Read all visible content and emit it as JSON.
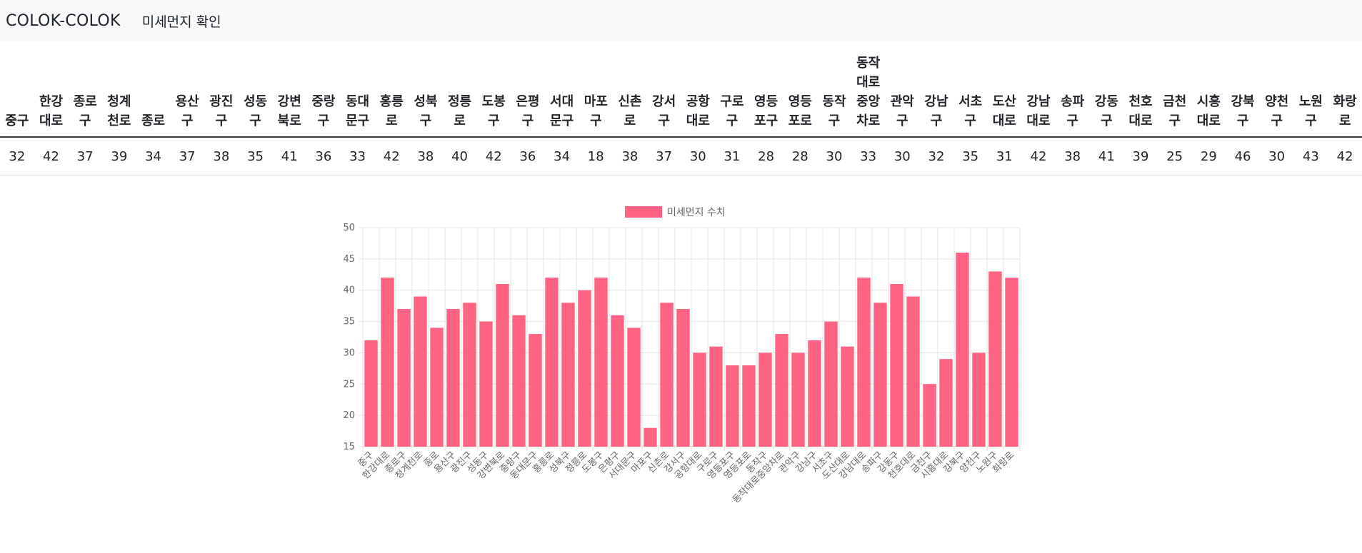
{
  "navbar": {
    "brand": "COLOK-COLOK",
    "link": "미세먼지 확인"
  },
  "table": {
    "headers": [
      "중구",
      "한강대로",
      "종로구",
      "청계천로",
      "종로",
      "용산구",
      "광진구",
      "성동구",
      "강변북로",
      "중랑구",
      "동대문구",
      "홍릉로",
      "성북구",
      "정릉로",
      "도봉구",
      "은평구",
      "서대문구",
      "마포구",
      "신촌로",
      "강서구",
      "공항대로",
      "구로구",
      "영등포구",
      "영등포로",
      "동작구",
      "동작대로중앙차로",
      "관악구",
      "강남구",
      "서초구",
      "도산대로",
      "강남대로",
      "송파구",
      "강동구",
      "천호대로",
      "금천구",
      "시흥대로",
      "강북구",
      "양천구",
      "노원구",
      "화랑로"
    ],
    "values": [
      "32",
      "42",
      "37",
      "39",
      "34",
      "37",
      "38",
      "35",
      "41",
      "36",
      "33",
      "42",
      "38",
      "40",
      "42",
      "36",
      "34",
      "18",
      "38",
      "37",
      "30",
      "31",
      "28",
      "28",
      "30",
      "33",
      "30",
      "32",
      "35",
      "31",
      "42",
      "38",
      "41",
      "39",
      "25",
      "29",
      "46",
      "30",
      "43",
      "42"
    ]
  },
  "chart_data": {
    "type": "bar",
    "categories": [
      "중구",
      "한강대로",
      "종로구",
      "청계천로",
      "종로",
      "용산구",
      "광진구",
      "성동구",
      "강변북로",
      "중랑구",
      "동대문구",
      "홍릉로",
      "성북구",
      "정릉로",
      "도봉구",
      "은평구",
      "서대문구",
      "마포구",
      "신촌로",
      "강서구",
      "공항대로",
      "구로구",
      "영등포구",
      "영등포로",
      "동작구",
      "동작대로중앙차로",
      "관악구",
      "강남구",
      "서초구",
      "도산대로",
      "강남대로",
      "송파구",
      "강동구",
      "천호대로",
      "금천구",
      "시흥대로",
      "강북구",
      "양천구",
      "노원구",
      "화랑로"
    ],
    "series": [
      {
        "name": "미세먼지 수치",
        "values": [
          32,
          42,
          37,
          39,
          34,
          37,
          38,
          35,
          41,
          36,
          33,
          42,
          38,
          40,
          42,
          36,
          34,
          18,
          38,
          37,
          30,
          31,
          28,
          28,
          30,
          33,
          30,
          32,
          35,
          31,
          42,
          38,
          41,
          39,
          25,
          29,
          46,
          30,
          43,
          42
        ]
      }
    ],
    "ylim": [
      15,
      50
    ],
    "yticks": [
      "15",
      "20",
      "25",
      "30",
      "35",
      "40",
      "45",
      "50"
    ],
    "grid": true,
    "legend_position": "top-center",
    "colors": {
      "bar": "#ff6384",
      "grid": "#e5e5e5",
      "axis_text": "#666666"
    }
  }
}
